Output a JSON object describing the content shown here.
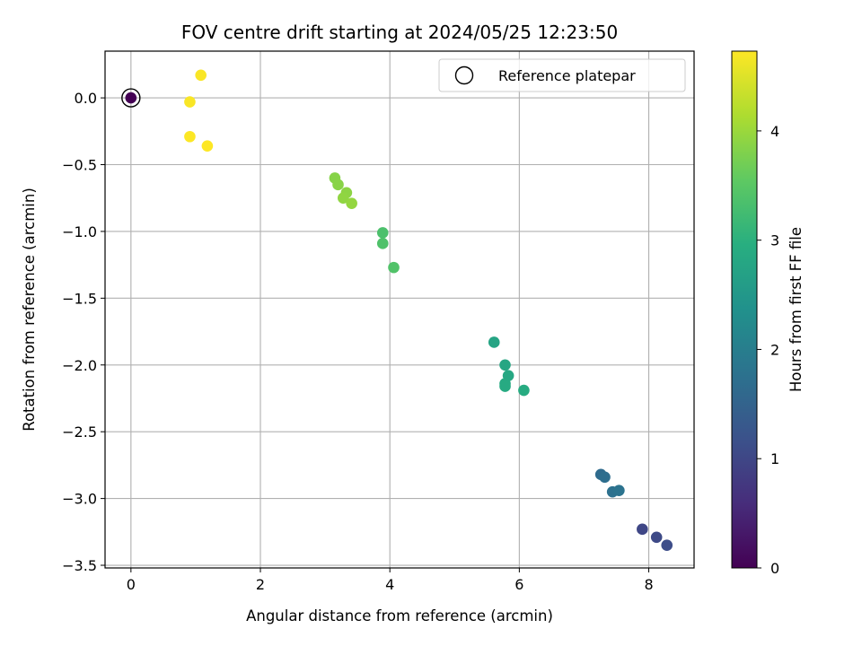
{
  "chart_data": {
    "type": "scatter",
    "title": "FOV centre drift starting at 2024/05/25 12:23:50",
    "xlabel": "Angular distance from reference (arcmin)",
    "ylabel": "Rotation from reference (arcmin)",
    "xlim": [
      -0.4,
      8.7
    ],
    "ylim": [
      -3.52,
      0.35
    ],
    "xticks": [
      0,
      2,
      4,
      6,
      8
    ],
    "yticks": [
      0.0,
      -0.5,
      -1.0,
      -1.5,
      -2.0,
      -2.5,
      -3.0,
      -3.5
    ],
    "xtick_labels": [
      "0",
      "2",
      "4",
      "6",
      "8"
    ],
    "ytick_labels": [
      "0.0",
      "−0.5",
      "−1.0",
      "−1.5",
      "−2.0",
      "−2.5",
      "−3.0",
      "−3.5"
    ],
    "grid": true,
    "legend": {
      "position": "top-right",
      "entries": [
        "Reference platepar"
      ]
    },
    "reference_point": {
      "x": 0.0,
      "y": 0.0
    },
    "colorbar": {
      "label": "Hours from first FF file",
      "colormap": "viridis",
      "range": [
        0,
        4.73
      ],
      "ticks": [
        0,
        1,
        2,
        3,
        4
      ],
      "tick_labels": [
        "0",
        "1",
        "2",
        "3",
        "4"
      ]
    },
    "points": [
      {
        "x": 0.0,
        "y": 0.0,
        "c": 0.0
      },
      {
        "x": 7.9,
        "y": -3.23,
        "c": 1.0
      },
      {
        "x": 8.12,
        "y": -3.29,
        "c": 1.05
      },
      {
        "x": 8.28,
        "y": -3.35,
        "c": 1.1
      },
      {
        "x": 7.26,
        "y": -2.82,
        "c": 1.65
      },
      {
        "x": 7.32,
        "y": -2.84,
        "c": 1.7
      },
      {
        "x": 7.44,
        "y": -2.95,
        "c": 1.75
      },
      {
        "x": 7.54,
        "y": -2.94,
        "c": 1.8
      },
      {
        "x": 5.61,
        "y": -1.83,
        "c": 2.75
      },
      {
        "x": 5.78,
        "y": -2.0,
        "c": 2.8
      },
      {
        "x": 5.83,
        "y": -2.08,
        "c": 2.82
      },
      {
        "x": 5.78,
        "y": -2.14,
        "c": 2.85
      },
      {
        "x": 5.78,
        "y": -2.16,
        "c": 2.87
      },
      {
        "x": 6.07,
        "y": -2.19,
        "c": 2.9
      },
      {
        "x": 3.89,
        "y": -1.01,
        "c": 3.35
      },
      {
        "x": 3.89,
        "y": -1.09,
        "c": 3.38
      },
      {
        "x": 4.06,
        "y": -1.27,
        "c": 3.4
      },
      {
        "x": 3.15,
        "y": -0.6,
        "c": 3.85
      },
      {
        "x": 3.2,
        "y": -0.65,
        "c": 3.87
      },
      {
        "x": 3.33,
        "y": -0.71,
        "c": 3.9
      },
      {
        "x": 3.28,
        "y": -0.75,
        "c": 3.92
      },
      {
        "x": 3.41,
        "y": -0.79,
        "c": 3.95
      },
      {
        "x": 1.08,
        "y": 0.17,
        "c": 4.7
      },
      {
        "x": 0.91,
        "y": -0.03,
        "c": 4.7
      },
      {
        "x": 0.91,
        "y": -0.29,
        "c": 4.72
      },
      {
        "x": 1.18,
        "y": -0.36,
        "c": 4.73
      }
    ]
  }
}
